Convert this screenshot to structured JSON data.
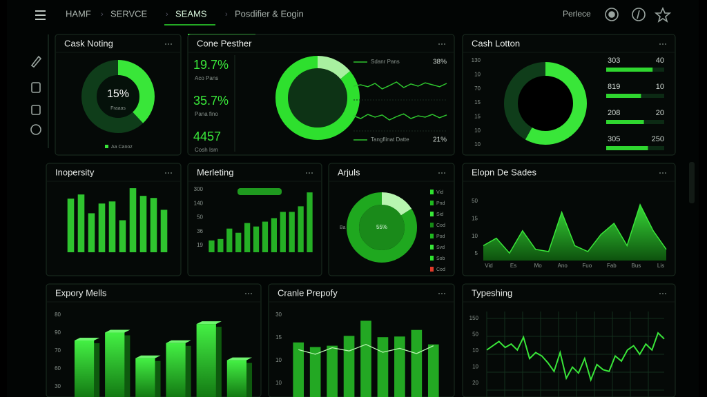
{
  "nav": {
    "items": [
      "HAMF",
      "SERVCE",
      "SEAMS",
      "Posdifier & Eogin"
    ],
    "user": "Perlece"
  },
  "panels": [
    {
      "title": "Cask Noting",
      "type": "donut",
      "segments": [
        38,
        62
      ],
      "colors": [
        "#39e639",
        "#0f3d1a"
      ],
      "inner_color": "#05110a",
      "center_label": "15%",
      "center_sub": "Fraaas",
      "legend": "Aa Canoz"
    },
    {
      "title": "Cone Pesther",
      "type": "kpi",
      "stats": [
        {
          "value": "19.7%",
          "label": "Aco Pans"
        },
        {
          "value": "35.7%",
          "label": "Pana fino"
        },
        {
          "value": "4457",
          "label": "Cosh Ism"
        }
      ],
      "segments": [
        14,
        86
      ],
      "colors": [
        "#a8f0a0",
        "#2ee02e"
      ],
      "inner_color": "#0d3315",
      "lines": [
        {
          "name": "Sdanr Pans",
          "figure": "38%",
          "color": "#2ec42e",
          "values": [
            50,
            55,
            48,
            60,
            40,
            52,
            65,
            45,
            58,
            50,
            62,
            55,
            48,
            60
          ]
        },
        {
          "name": "Tangflinat Datte",
          "figure": "21%",
          "color": "#2ec42e",
          "values": [
            55,
            45,
            60,
            50,
            58,
            40,
            52,
            62,
            45,
            55,
            50,
            60,
            48,
            58
          ]
        }
      ],
      "ylim": [
        0,
        100
      ]
    },
    {
      "title": "Cash Lotton",
      "type": "donut_list",
      "axis_labels": [
        "130",
        "10",
        "70",
        "15",
        "15",
        "10",
        "10"
      ],
      "segments": [
        58,
        42
      ],
      "colors": [
        "#39e639",
        "#0f3d1a"
      ],
      "inner_color": "#000000",
      "rows": [
        {
          "label": "303",
          "figure": "40",
          "progress": 80
        },
        {
          "label": "819",
          "figure": "10",
          "progress": 60
        },
        {
          "label": "208",
          "figure": "20",
          "progress": 65
        },
        {
          "label": "305",
          "figure": "250",
          "progress": 72
        }
      ]
    },
    {
      "title": "Inopersity",
      "type": "bar",
      "color": "#2fc42f",
      "ylim": [
        0,
        100
      ],
      "values": [
        77,
        83,
        56,
        70,
        73,
        46,
        92,
        81,
        78,
        61
      ]
    },
    {
      "title": "Merleting",
      "type": "bar",
      "color": "#25b025",
      "ylim": [
        0,
        100
      ],
      "axis_labels": [
        "300",
        "140",
        "50",
        "36",
        "19"
      ],
      "values": [
        17,
        19,
        34,
        28,
        42,
        37,
        44,
        49,
        58,
        58,
        66,
        86
      ]
    },
    {
      "title": "Arjuls",
      "type": "donut_legend",
      "segments": [
        16,
        84
      ],
      "colors": [
        "#b8f5b0",
        "#1fa81f"
      ],
      "inner_color": "#1a8a1a",
      "center_label": "55%",
      "side_label": "Ba",
      "legend": [
        {
          "name": "Vid",
          "color": "#2ee02e"
        },
        {
          "name": "Pnd",
          "color": "#1fb81f"
        },
        {
          "name": "Sid",
          "color": "#39e639"
        },
        {
          "name": "Cod",
          "color": "#168a16"
        },
        {
          "name": "Pod",
          "color": "#1fb81f"
        },
        {
          "name": "Svd",
          "color": "#39e639"
        },
        {
          "name": "Sob",
          "color": "#2ee02e"
        },
        {
          "name": "Cod",
          "color": "#e03a2a"
        }
      ]
    },
    {
      "title": "Elopn De Sades",
      "type": "area",
      "color": "#39e639",
      "ylim": [
        0,
        100
      ],
      "axis_labels": [
        "50",
        "15",
        "10",
        "5"
      ],
      "x_labels": [
        "Vid",
        "Es",
        "Mo",
        "Ano",
        "Fuo",
        "Fab",
        "Bus",
        "Lis"
      ],
      "values": [
        20,
        30,
        10,
        40,
        15,
        12,
        65,
        20,
        12,
        35,
        50,
        20,
        75,
        40,
        15
      ]
    },
    {
      "title": "Expory Mells",
      "type": "bar3d",
      "color": "#2fd62f",
      "ylim": [
        0,
        130
      ],
      "axis_labels": [
        "80",
        "90",
        "70",
        "60",
        "30"
      ],
      "values": [
        86,
        98,
        59,
        82,
        111,
        56
      ]
    },
    {
      "title": "Cranle Prepofy",
      "type": "bar_line",
      "color": "#23a823",
      "line_color": "#b8f5b0",
      "ylim": [
        0,
        130
      ],
      "axis_labels": [
        "30",
        "15",
        "10",
        "10"
      ],
      "values": [
        83,
        76,
        78,
        93,
        116,
        91,
        92,
        102,
        80
      ],
      "line": [
        72,
        65,
        75,
        70,
        80,
        68,
        74,
        66,
        78
      ]
    },
    {
      "title": "Typeshing",
      "type": "line",
      "color": "#39e639",
      "ylim": [
        0,
        100
      ],
      "axis_labels": [
        "150",
        "50",
        "10",
        "10",
        "20"
      ],
      "values": [
        55,
        60,
        65,
        58,
        62,
        55,
        70,
        45,
        52,
        48,
        40,
        30,
        52,
        22,
        35,
        28,
        45,
        20,
        38,
        32,
        30,
        48,
        42,
        55,
        60,
        50,
        62,
        55,
        75,
        68
      ]
    }
  ]
}
